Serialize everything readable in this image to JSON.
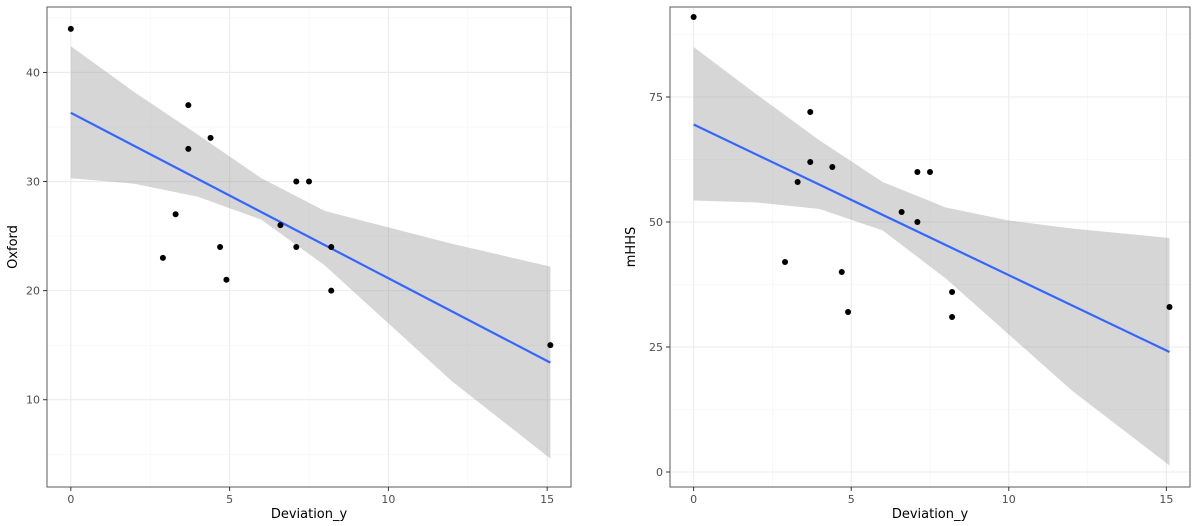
{
  "colors": {
    "points": "#000000",
    "fit_line": "#3366ff",
    "ci_band": "#999999",
    "grid": "#ebebeb",
    "panel_border": "#5a5a5a"
  },
  "chart_data": [
    {
      "type": "scatter",
      "xlabel": "Deviation_y",
      "ylabel": "Oxford",
      "xlim": [
        -0.75,
        15.75
      ],
      "ylim": [
        2.0,
        46.0
      ],
      "x_ticks": [
        0,
        5,
        10,
        15
      ],
      "x_tick_labels": [
        "0",
        "5",
        "10",
        "15"
      ],
      "y_ticks": [
        10,
        20,
        30,
        40
      ],
      "y_tick_labels": [
        "10",
        "20",
        "30",
        "40"
      ],
      "points": [
        {
          "x": 0,
          "y": 44
        },
        {
          "x": 2.9,
          "y": 23
        },
        {
          "x": 3.3,
          "y": 27
        },
        {
          "x": 3.7,
          "y": 37
        },
        {
          "x": 3.7,
          "y": 33
        },
        {
          "x": 4.4,
          "y": 34
        },
        {
          "x": 4.7,
          "y": 24
        },
        {
          "x": 4.9,
          "y": 21
        },
        {
          "x": 6.6,
          "y": 26
        },
        {
          "x": 7.1,
          "y": 30
        },
        {
          "x": 7.1,
          "y": 24
        },
        {
          "x": 7.5,
          "y": 30
        },
        {
          "x": 8.2,
          "y": 24
        },
        {
          "x": 8.2,
          "y": 20
        },
        {
          "x": 15.1,
          "y": 15
        }
      ],
      "fit": {
        "x": [
          0,
          15.1
        ],
        "y": [
          36.3,
          13.4
        ]
      },
      "ci_band": [
        {
          "x": 0,
          "lower": 30.3,
          "upper": 42.4
        },
        {
          "x": 2,
          "lower": 29.8,
          "upper": 38.2
        },
        {
          "x": 4,
          "lower": 28.6,
          "upper": 34.3
        },
        {
          "x": 6,
          "lower": 26.5,
          "upper": 30.3
        },
        {
          "x": 8,
          "lower": 22.3,
          "upper": 27.3
        },
        {
          "x": 10,
          "lower": 17.0,
          "upper": 25.8
        },
        {
          "x": 12,
          "lower": 11.7,
          "upper": 24.3
        },
        {
          "x": 15.1,
          "lower": 4.6,
          "upper": 22.2
        }
      ],
      "grid": true
    },
    {
      "type": "scatter",
      "xlabel": "Deviation_y",
      "ylabel": "mHHS",
      "xlim": [
        -0.75,
        15.75
      ],
      "ylim": [
        -3.0,
        93.0
      ],
      "x_ticks": [
        0,
        5,
        10,
        15
      ],
      "x_tick_labels": [
        "0",
        "5",
        "10",
        "15"
      ],
      "y_ticks": [
        0,
        25,
        50,
        75
      ],
      "y_tick_labels": [
        "0",
        "25",
        "50",
        "75"
      ],
      "points": [
        {
          "x": 0,
          "y": 91
        },
        {
          "x": 2.9,
          "y": 42
        },
        {
          "x": 3.3,
          "y": 58
        },
        {
          "x": 3.7,
          "y": 72
        },
        {
          "x": 3.7,
          "y": 62
        },
        {
          "x": 4.4,
          "y": 61
        },
        {
          "x": 4.7,
          "y": 40
        },
        {
          "x": 4.9,
          "y": 32
        },
        {
          "x": 6.6,
          "y": 52
        },
        {
          "x": 7.1,
          "y": 60
        },
        {
          "x": 7.1,
          "y": 50
        },
        {
          "x": 7.5,
          "y": 60
        },
        {
          "x": 8.2,
          "y": 36
        },
        {
          "x": 8.2,
          "y": 31
        },
        {
          "x": 15.1,
          "y": 33
        }
      ],
      "fit": {
        "x": [
          0,
          15.1
        ],
        "y": [
          69.5,
          24.0
        ]
      },
      "ci_band": [
        {
          "x": 0,
          "lower": 54.3,
          "upper": 85.0
        },
        {
          "x": 2,
          "lower": 53.9,
          "upper": 75.5
        },
        {
          "x": 4,
          "lower": 52.6,
          "upper": 66.3
        },
        {
          "x": 6,
          "lower": 48.3,
          "upper": 58.0
        },
        {
          "x": 8,
          "lower": 38.7,
          "upper": 52.9
        },
        {
          "x": 10,
          "lower": 27.5,
          "upper": 50.3
        },
        {
          "x": 12,
          "lower": 16.3,
          "upper": 48.7
        },
        {
          "x": 15.1,
          "lower": 1.3,
          "upper": 46.8
        }
      ],
      "grid": true
    }
  ]
}
